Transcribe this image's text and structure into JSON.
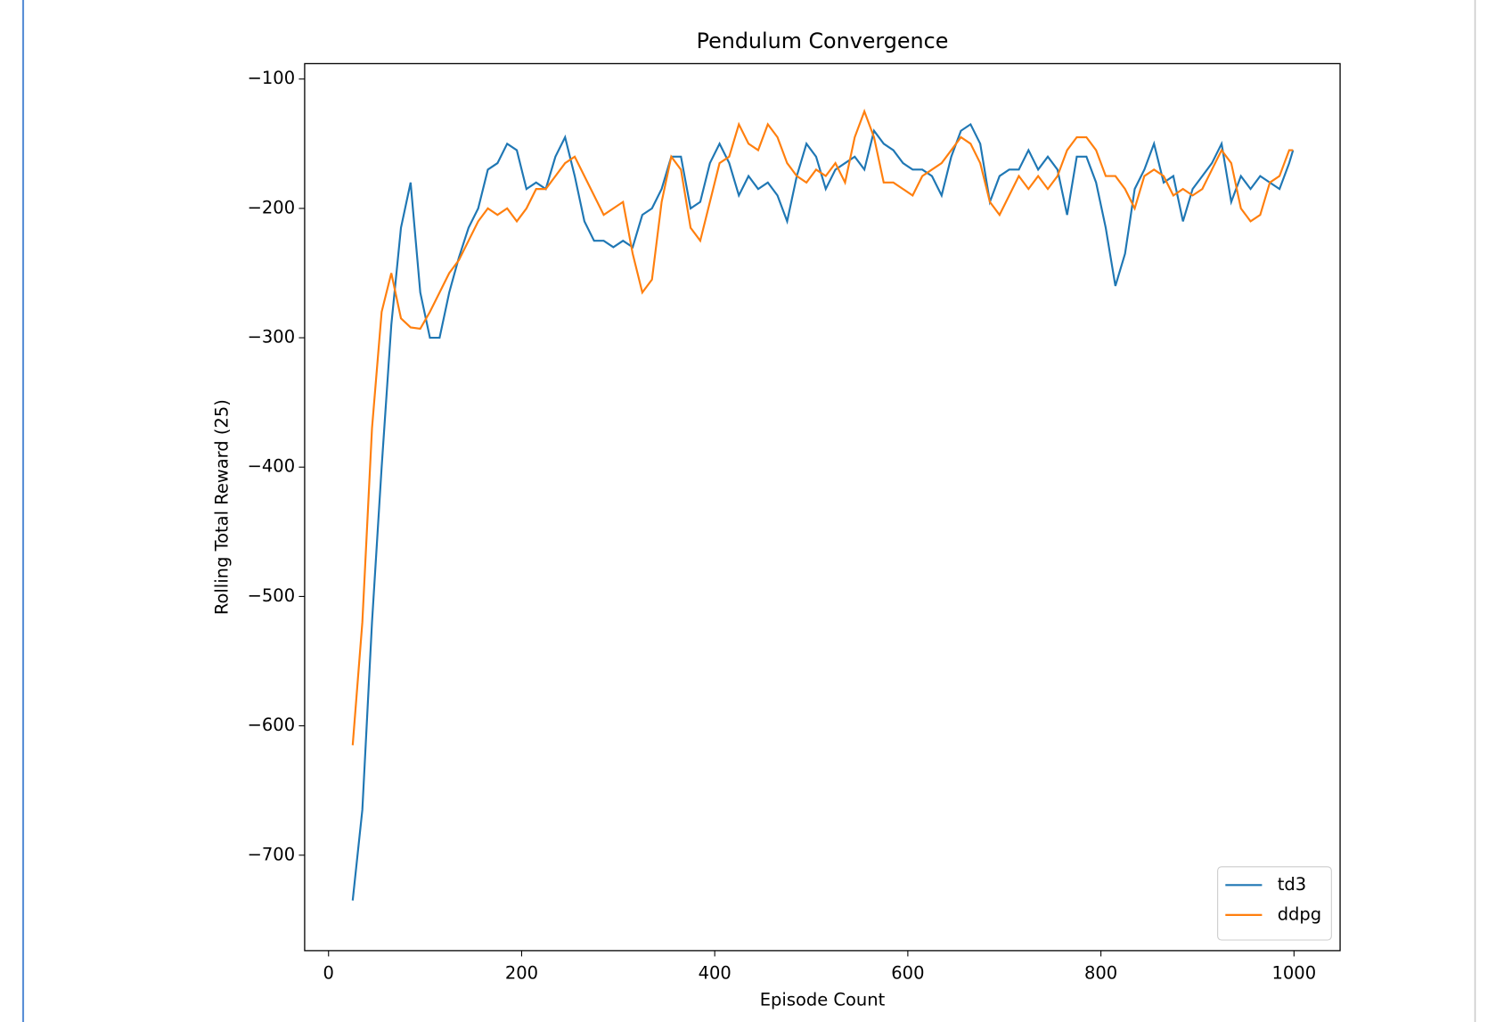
{
  "chart_data": {
    "type": "line",
    "title": "Pendulum Convergence",
    "xlabel": "Episode Count",
    "ylabel": "Rolling Total Reward (25)",
    "xlim": [
      -24.75,
      1047.75
    ],
    "ylim": [
      -773.8,
      -88.1
    ],
    "xticks": [
      0,
      200,
      400,
      600,
      800,
      1000
    ],
    "yticks": [
      {
        "value": -100,
        "label": "−100"
      },
      {
        "value": -200,
        "label": "−200"
      },
      {
        "value": -300,
        "label": "−300"
      },
      {
        "value": -400,
        "label": "−400"
      },
      {
        "value": -500,
        "label": "−500"
      },
      {
        "value": -600,
        "label": "−600"
      },
      {
        "value": -700,
        "label": "−700"
      }
    ],
    "grid": false,
    "legend": "lower right",
    "x": [
      25,
      35,
      45,
      55,
      65,
      75,
      85,
      95,
      105,
      115,
      125,
      135,
      145,
      155,
      165,
      175,
      185,
      195,
      205,
      215,
      225,
      235,
      245,
      255,
      265,
      275,
      285,
      295,
      305,
      315,
      325,
      335,
      345,
      355,
      365,
      375,
      385,
      395,
      405,
      415,
      425,
      435,
      445,
      455,
      465,
      475,
      485,
      495,
      505,
      515,
      525,
      535,
      545,
      555,
      565,
      575,
      585,
      595,
      605,
      615,
      625,
      635,
      645,
      655,
      665,
      675,
      685,
      695,
      705,
      715,
      725,
      735,
      745,
      755,
      765,
      775,
      785,
      795,
      805,
      815,
      825,
      835,
      845,
      855,
      865,
      875,
      885,
      895,
      905,
      915,
      925,
      935,
      945,
      955,
      965,
      975,
      985,
      995,
      999
    ],
    "series": [
      {
        "name": "td3",
        "color": "#1f77b4",
        "values": [
          -735,
          -665,
          -520,
          -400,
          -290,
          -215,
          -180,
          -265,
          -300,
          -300,
          -265,
          -238,
          -215,
          -200,
          -170,
          -165,
          -150,
          -155,
          -185,
          -180,
          -185,
          -160,
          -145,
          -175,
          -210,
          -225,
          -225,
          -230,
          -225,
          -230,
          -205,
          -200,
          -185,
          -160,
          -160,
          -200,
          -195,
          -165,
          -150,
          -165,
          -190,
          -175,
          -185,
          -180,
          -190,
          -210,
          -175,
          -150,
          -160,
          -185,
          -170,
          -165,
          -160,
          -170,
          -140,
          -150,
          -155,
          -165,
          -170,
          -170,
          -175,
          -190,
          -160,
          -140,
          -135,
          -150,
          -195,
          -175,
          -170,
          -170,
          -155,
          -170,
          -160,
          -170,
          -205,
          -160,
          -160,
          -180,
          -215,
          -260,
          -235,
          -185,
          -170,
          -150,
          -180,
          -175,
          -210,
          -185,
          -175,
          -165,
          -150,
          -195,
          -175,
          -185,
          -175,
          -180,
          -185,
          -165,
          -155
        ]
      },
      {
        "name": "ddpg",
        "color": "#ff7f0e",
        "values": [
          -615,
          -520,
          -370,
          -280,
          -250,
          -285,
          -292,
          -293,
          -280,
          -265,
          -250,
          -240,
          -225,
          -210,
          -200,
          -205,
          -200,
          -210,
          -200,
          -185,
          -185,
          -175,
          -165,
          -160,
          -175,
          -190,
          -205,
          -200,
          -195,
          -235,
          -265,
          -255,
          -195,
          -160,
          -170,
          -215,
          -225,
          -195,
          -165,
          -160,
          -135,
          -150,
          -155,
          -135,
          -145,
          -165,
          -175,
          -180,
          -170,
          -175,
          -165,
          -180,
          -145,
          -125,
          -145,
          -180,
          -180,
          -185,
          -190,
          -175,
          -170,
          -165,
          -155,
          -145,
          -150,
          -165,
          -195,
          -205,
          -190,
          -175,
          -185,
          -175,
          -185,
          -175,
          -155,
          -145,
          -145,
          -155,
          -175,
          -175,
          -185,
          -200,
          -175,
          -170,
          -175,
          -190,
          -185,
          -190,
          -185,
          -170,
          -155,
          -165,
          -200,
          -210,
          -205,
          -180,
          -175,
          -155,
          -155
        ]
      }
    ]
  }
}
